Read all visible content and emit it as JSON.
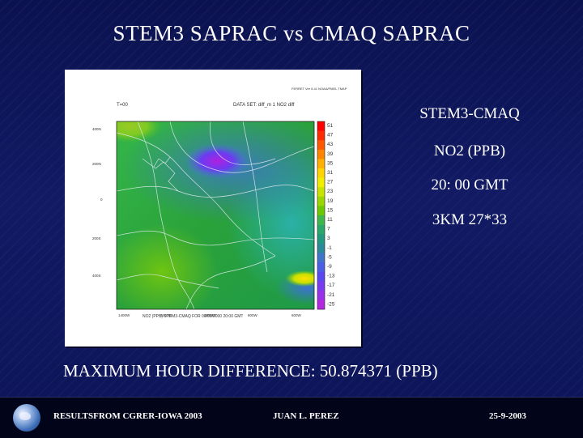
{
  "slide": {
    "title": "STEM3 SAPRAC vs CMAQ SAPRAC",
    "side_labels": [
      "STEM3-CMAQ",
      "NO2 (PPB)",
      "20: 00 GMT",
      "3KM 27*33"
    ],
    "max_difference": "MAXIMUM HOUR DIFFERENCE:  50.874371   (PPB)",
    "footer": {
      "left": "RESULTSFROM CGRER-IOWA 2003",
      "center": "JUAN L. PEREZ",
      "right": "25-9-2003"
    }
  },
  "figure": {
    "header_left": "T=00",
    "header_center": "DATA SET: diff_m 1 NO2 diff",
    "stamp": "FERRET Ver 5.41 NOAA/PMEL TMAP",
    "y_ticks": [
      "400N",
      "200N",
      "0",
      "200S",
      "400S"
    ],
    "x_ticks": [
      "1400W",
      "1200W",
      "1000W",
      "800W",
      "600W"
    ],
    "caption": "NO2 (PPB) STEM3-CMAQ FOR 00/09/2000 20:00 GMT",
    "colorbar_labels": [
      "51",
      "47",
      "43",
      "39",
      "35",
      "31",
      "27",
      "23",
      "19",
      "15",
      "11",
      "7",
      "3",
      "-1",
      "-5",
      "-9",
      "-13",
      "-17",
      "-21",
      "-25"
    ],
    "colorbar_colors": [
      "#ff0000",
      "#ff2a00",
      "#ff5600",
      "#ff8400",
      "#ffb000",
      "#ffd400",
      "#f2ee00",
      "#c8e400",
      "#9ad600",
      "#6cc800",
      "#3fb84a",
      "#2aa86a",
      "#22987e",
      "#2a8a9a",
      "#3f74c8",
      "#4a5ee6",
      "#5a48f0",
      "#7a3cf0",
      "#9a30e8",
      "#b428e0"
    ]
  }
}
